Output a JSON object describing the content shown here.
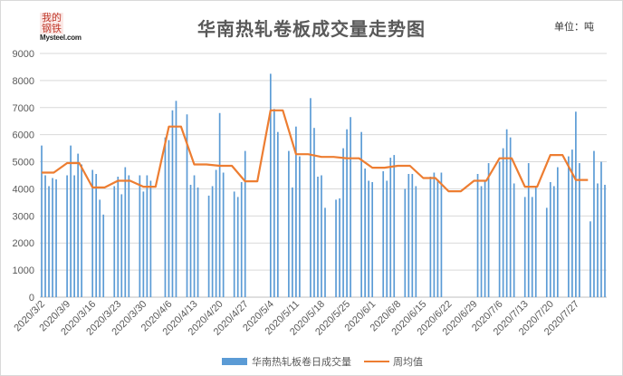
{
  "logo": {
    "text_cn": "我的钢铁",
    "text_en": "Mysteel.com"
  },
  "title": "华南热轧卷板成交量走势图",
  "unit": "单位：吨",
  "chart_data": {
    "type": "bar",
    "title": "华南热轧卷板成交量走势图",
    "ylim": [
      0,
      9000
    ],
    "yticks": [
      0,
      1000,
      2000,
      3000,
      4000,
      5000,
      6000,
      7000,
      8000,
      9000
    ],
    "grid": true,
    "legend_position": "bottom",
    "x_tick_labels": [
      "2020/3/2",
      "2020/3/9",
      "2020/3/16",
      "2020/3/23",
      "2020/3/30",
      "2020/4/6",
      "2020/4/13",
      "2020/4/20",
      "2020/4/27",
      "2020/5/4",
      "2020/5/11",
      "2020/5/18",
      "2020/5/25",
      "2020/6/1",
      "2020/6/8",
      "2020/6/15",
      "2020/6/22",
      "2020/6/29",
      "2020/7/6",
      "2020/7/13",
      "2020/7/20",
      "2020/7/27"
    ],
    "series": [
      {
        "name": "华南热轧板卷日成交量",
        "type": "bar",
        "color": "#5b9bd5",
        "values": [
          5600,
          4500,
          4100,
          4400,
          4350,
          0,
          0,
          4500,
          5600,
          4500,
          5300,
          4900,
          0,
          0,
          4700,
          4550,
          3600,
          3050,
          0,
          0,
          4100,
          4450,
          3800,
          4800,
          4500,
          0,
          0,
          4500,
          3900,
          4500,
          4300,
          0,
          0,
          0,
          5900,
          5800,
          6900,
          7250,
          0,
          0,
          6750,
          4150,
          4500,
          4050,
          0,
          0,
          3750,
          4100,
          4700,
          6800,
          4600,
          0,
          0,
          3900,
          3700,
          4250,
          5400,
          0,
          0,
          0,
          0,
          0,
          0,
          8250,
          6950,
          6100,
          0,
          0,
          5400,
          4050,
          6300,
          5200,
          0,
          0,
          7350,
          6250,
          4450,
          4500,
          3300,
          0,
          0,
          3600,
          3650,
          5500,
          6200,
          6650,
          0,
          0,
          6100,
          4750,
          4300,
          4250,
          0,
          0,
          4650,
          4300,
          5150,
          5250,
          0,
          0,
          4000,
          4550,
          4550,
          4100,
          0,
          0,
          0,
          4450,
          4600,
          4350,
          4600,
          0,
          0,
          0,
          0,
          0,
          0,
          0,
          0,
          0,
          4550,
          4100,
          4300,
          4950,
          0,
          0,
          5000,
          5500,
          6200,
          5900,
          4200,
          0,
          0,
          3700,
          4950,
          3700,
          4100,
          0,
          0,
          3300,
          4250,
          4100,
          4800,
          0,
          0,
          5200,
          5450,
          6850,
          4950,
          0,
          0,
          2800,
          5400,
          4200,
          5000,
          4150
        ]
      },
      {
        "name": "周均值",
        "type": "line",
        "color": "#ed7d31",
        "weekly_values": [
          4600,
          4950,
          4050,
          4300,
          4080,
          6300,
          4900,
          4850,
          4280,
          6900,
          5280,
          5180,
          5130,
          4780,
          4850,
          4400,
          3910,
          4300,
          5130,
          4080,
          5250,
          4330
        ]
      }
    ]
  },
  "legend": {
    "bar_label": "华南热轧板卷日成交量",
    "line_label": "周均值"
  }
}
